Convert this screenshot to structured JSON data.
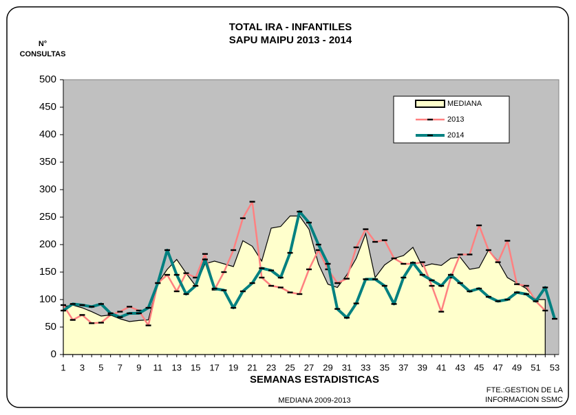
{
  "chart_data": {
    "type": "line",
    "title": [
      "TOTAL IRA - INFANTILES",
      "SAPU MAIPU   2013 - 2014"
    ],
    "y_label": [
      "N°",
      "CONSULTAS"
    ],
    "x_label": "SEMANAS ESTADISTICAS",
    "annotations": [
      "MEDIANA 2009-2013",
      "FTE.:GESTION DE LA",
      "INFORMACION SSMC"
    ],
    "categories": [
      1,
      null,
      3,
      null,
      5,
      null,
      7,
      null,
      9,
      null,
      11,
      null,
      13,
      null,
      15,
      null,
      17,
      null,
      19,
      null,
      21,
      null,
      23,
      null,
      25,
      null,
      27,
      null,
      29,
      null,
      31,
      null,
      33,
      null,
      35,
      null,
      37,
      null,
      39,
      null,
      41,
      null,
      43,
      null,
      45,
      null,
      47,
      null,
      49,
      null,
      51,
      null,
      53
    ],
    "ylim": [
      0,
      500
    ],
    "yticks": [
      0,
      50,
      100,
      150,
      200,
      250,
      300,
      350,
      400,
      450,
      500
    ],
    "plot_background": "#c0c0c0",
    "legend": "top-right",
    "series": [
      {
        "name": "MEDIANA",
        "kind": "area",
        "color": "#000000",
        "fill": "#ffffcc",
        "values": [
          87,
          90,
          85,
          78,
          70,
          72,
          65,
          60,
          62,
          63,
          130,
          155,
          173,
          148,
          125,
          165,
          170,
          165,
          160,
          207,
          197,
          170,
          230,
          233,
          252,
          252,
          228,
          165,
          128,
          122,
          145,
          175,
          220,
          140,
          163,
          175,
          180,
          195,
          160,
          165,
          162,
          175,
          177,
          155,
          158,
          190,
          170,
          140,
          130,
          120,
          100,
          100,
          null
        ]
      },
      {
        "name": "2013",
        "kind": "line",
        "color": "#ff8080",
        "values": [
          90,
          63,
          72,
          57,
          58,
          72,
          78,
          87,
          80,
          53,
          130,
          145,
          115,
          148,
          140,
          183,
          118,
          150,
          190,
          248,
          278,
          140,
          125,
          122,
          113,
          110,
          155,
          190,
          155,
          130,
          138,
          195,
          228,
          205,
          208,
          175,
          165,
          165,
          168,
          125,
          78,
          140,
          182,
          182,
          235,
          190,
          168,
          207,
          128,
          125,
          97,
          80,
          null
        ]
      },
      {
        "name": "2014",
        "kind": "line",
        "color": "#008080",
        "values": [
          80,
          92,
          90,
          87,
          92,
          75,
          68,
          75,
          75,
          85,
          130,
          190,
          145,
          110,
          125,
          173,
          120,
          117,
          85,
          115,
          130,
          157,
          153,
          140,
          185,
          260,
          240,
          200,
          165,
          83,
          67,
          93,
          137,
          137,
          125,
          92,
          140,
          167,
          145,
          135,
          125,
          145,
          130,
          115,
          120,
          105,
          97,
          100,
          113,
          110,
          97,
          122,
          65
        ]
      }
    ]
  }
}
